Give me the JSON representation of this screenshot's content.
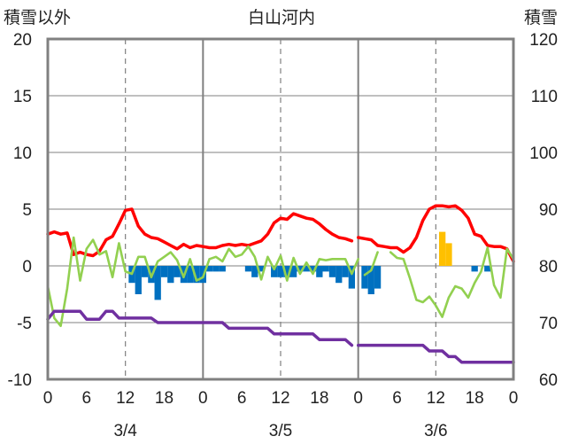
{
  "chart_data": {
    "type": "line",
    "title": "白山河内",
    "ylabel_left": "積雪以外",
    "ylabel_right": "積雪",
    "ylim_left": [
      -10,
      20
    ],
    "ylim_right": [
      60,
      120
    ],
    "left_ticks": [
      "20",
      "15",
      "10",
      "5",
      "0",
      "-5",
      "-10"
    ],
    "right_ticks": [
      "120",
      "110",
      "100",
      "90",
      "80",
      "70",
      "60"
    ],
    "x_tick_labels": [
      "0",
      "6",
      "12",
      "18",
      "0",
      "6",
      "12",
      "18",
      "0",
      "6",
      "12",
      "18",
      "0"
    ],
    "date_labels": [
      "3/4",
      "3/5",
      "3/6"
    ],
    "x_hours_range": [
      0,
      72
    ],
    "grid": true,
    "series": [
      {
        "color": "#ff0000",
        "points": [
          [
            0,
            2.8
          ],
          [
            1,
            3.0
          ],
          [
            2,
            2.8
          ],
          [
            3,
            2.9
          ],
          [
            4,
            1.0
          ],
          [
            5,
            1.2
          ],
          [
            6,
            1.0
          ],
          [
            7,
            0.9
          ],
          [
            8,
            1.3
          ],
          [
            9,
            2.3
          ],
          [
            10,
            2.6
          ],
          [
            11,
            3.7
          ],
          [
            12,
            4.9
          ],
          [
            13,
            5.0
          ],
          [
            14,
            3.5
          ],
          [
            15,
            2.8
          ],
          [
            16,
            2.5
          ],
          [
            17,
            2.4
          ],
          [
            18,
            2.1
          ],
          [
            19,
            1.8
          ],
          [
            20,
            1.5
          ],
          [
            21,
            1.9
          ],
          [
            22,
            1.6
          ],
          [
            23,
            1.8
          ],
          [
            24,
            1.7
          ],
          [
            25,
            1.6
          ],
          [
            26,
            1.6
          ],
          [
            27,
            1.8
          ],
          [
            28,
            1.9
          ],
          [
            29,
            1.8
          ],
          [
            30,
            1.9
          ],
          [
            31,
            1.8
          ],
          [
            32,
            2.0
          ],
          [
            33,
            2.2
          ],
          [
            34,
            2.8
          ],
          [
            35,
            3.8
          ],
          [
            36,
            4.2
          ],
          [
            37,
            4.1
          ],
          [
            38,
            4.6
          ],
          [
            39,
            4.4
          ],
          [
            40,
            4.2
          ],
          [
            41,
            4.1
          ],
          [
            42,
            3.7
          ],
          [
            43,
            3.2
          ],
          [
            44,
            2.8
          ],
          [
            45,
            2.5
          ],
          [
            46,
            2.4
          ],
          [
            47,
            2.2
          ],
          [
            null,
            null
          ],
          [
            48,
            2.5
          ],
          [
            49,
            2.4
          ],
          [
            50,
            2.3
          ],
          [
            51,
            1.8
          ],
          [
            52,
            1.7
          ],
          [
            53,
            1.6
          ],
          [
            54,
            1.6
          ],
          [
            55,
            1.2
          ],
          [
            56,
            1.6
          ],
          [
            57,
            2.5
          ],
          [
            58,
            4.0
          ],
          [
            59,
            5.0
          ],
          [
            60,
            5.3
          ],
          [
            61,
            5.3
          ],
          [
            62,
            5.2
          ],
          [
            63,
            5.3
          ],
          [
            64,
            4.9
          ],
          [
            65,
            4.2
          ],
          [
            66,
            2.8
          ],
          [
            67,
            2.6
          ],
          [
            68,
            1.8
          ],
          [
            69,
            1.7
          ],
          [
            70,
            1.7
          ],
          [
            71,
            1.5
          ],
          [
            72,
            0.4
          ]
        ]
      },
      {
        "color": "#92d050",
        "points": [
          [
            0,
            -1.8
          ],
          [
            1,
            -4.6
          ],
          [
            2,
            -5.3
          ],
          [
            3,
            -2.0
          ],
          [
            4,
            2.5
          ],
          [
            5,
            -1.3
          ],
          [
            6,
            1.5
          ],
          [
            7,
            2.3
          ],
          [
            8,
            1.0
          ],
          [
            9,
            1.3
          ],
          [
            10,
            -1.0
          ],
          [
            11,
            2.0
          ],
          [
            12,
            -0.5
          ],
          [
            13,
            -0.7
          ],
          [
            14,
            0.8
          ],
          [
            15,
            0.8
          ],
          [
            16,
            -1.0
          ],
          [
            17,
            0.4
          ],
          [
            18,
            0.8
          ],
          [
            19,
            1.2
          ],
          [
            20,
            0.5
          ],
          [
            21,
            -1.0
          ],
          [
            22,
            0.6
          ],
          [
            23,
            -1.3
          ],
          [
            24,
            -1.0
          ],
          [
            25,
            0.6
          ],
          [
            26,
            0.8
          ],
          [
            27,
            0.4
          ],
          [
            28,
            1.5
          ],
          [
            29,
            0.8
          ],
          [
            30,
            1.0
          ],
          [
            31,
            1.7
          ],
          [
            32,
            0.8
          ],
          [
            33,
            -1.2
          ],
          [
            34,
            0.8
          ],
          [
            35,
            -0.3
          ],
          [
            36,
            0.9
          ],
          [
            37,
            -1.3
          ],
          [
            38,
            0.7
          ],
          [
            39,
            -0.7
          ],
          [
            40,
            0.3
          ],
          [
            41,
            -0.7
          ],
          [
            42,
            0.6
          ],
          [
            43,
            0.5
          ],
          [
            44,
            0.6
          ],
          [
            45,
            0.6
          ],
          [
            46,
            0.6
          ],
          [
            47,
            -0.7
          ],
          [
            48,
            0.6
          ],
          [
            null,
            null
          ],
          [
            49,
            -0.8
          ],
          [
            50,
            -0.4
          ],
          [
            51,
            1.2
          ],
          [
            null,
            null
          ],
          [
            53,
            1.2
          ],
          [
            54,
            0.7
          ],
          [
            55,
            0.6
          ],
          [
            56,
            -1.1
          ],
          [
            57,
            -3.0
          ],
          [
            58,
            -3.2
          ],
          [
            59,
            -2.7
          ],
          [
            60,
            -3.5
          ],
          [
            61,
            -4.5
          ],
          [
            62,
            -2.8
          ],
          [
            63,
            -1.8
          ],
          [
            64,
            -2.0
          ],
          [
            65,
            -2.8
          ],
          [
            66,
            -1.5
          ],
          [
            67,
            -0.5
          ],
          [
            68,
            1.6
          ],
          [
            69,
            -1.7
          ],
          [
            70,
            -2.8
          ],
          [
            71,
            1.5
          ],
          [
            72,
            0.6
          ]
        ]
      },
      {
        "color": "#7030a0",
        "points": [
          [
            0,
            -4.7
          ],
          [
            1,
            -4.0
          ],
          [
            2,
            -4.0
          ],
          [
            3,
            -4.0
          ],
          [
            4,
            -4.0
          ],
          [
            5,
            -4.0
          ],
          [
            6,
            -4.7
          ],
          [
            7,
            -4.7
          ],
          [
            8,
            -4.7
          ],
          [
            9,
            -4.0
          ],
          [
            10,
            -4.0
          ],
          [
            11,
            -4.6
          ],
          [
            12,
            -4.6
          ],
          [
            13,
            -4.6
          ],
          [
            14,
            -4.6
          ],
          [
            15,
            -4.6
          ],
          [
            16,
            -4.6
          ],
          [
            17,
            -5.0
          ],
          [
            18,
            -5.0
          ],
          [
            19,
            -5.0
          ],
          [
            20,
            -5.0
          ],
          [
            21,
            -5.0
          ],
          [
            22,
            -5.0
          ],
          [
            23,
            -5.0
          ],
          [
            24,
            -5.0
          ],
          [
            25,
            -5.0
          ],
          [
            26,
            -5.0
          ],
          [
            27,
            -5.0
          ],
          [
            28,
            -5.5
          ],
          [
            29,
            -5.5
          ],
          [
            30,
            -5.5
          ],
          [
            31,
            -5.5
          ],
          [
            32,
            -5.5
          ],
          [
            33,
            -5.5
          ],
          [
            34,
            -5.5
          ],
          [
            35,
            -6.0
          ],
          [
            36,
            -6.0
          ],
          [
            37,
            -6.0
          ],
          [
            38,
            -6.0
          ],
          [
            39,
            -6.0
          ],
          [
            40,
            -6.0
          ],
          [
            41,
            -6.0
          ],
          [
            42,
            -6.5
          ],
          [
            43,
            -6.5
          ],
          [
            44,
            -6.5
          ],
          [
            45,
            -6.5
          ],
          [
            46,
            -6.5
          ],
          [
            47,
            -7.0
          ],
          [
            null,
            null
          ],
          [
            48,
            -7.0
          ],
          [
            49,
            -7.0
          ],
          [
            50,
            -7.0
          ],
          [
            51,
            -7.0
          ],
          [
            52,
            -7.0
          ],
          [
            53,
            -7.0
          ],
          [
            54,
            -7.0
          ],
          [
            55,
            -7.0
          ],
          [
            56,
            -7.0
          ],
          [
            57,
            -7.0
          ],
          [
            58,
            -7.0
          ],
          [
            59,
            -7.5
          ],
          [
            60,
            -7.5
          ],
          [
            61,
            -7.5
          ],
          [
            62,
            -8.0
          ],
          [
            63,
            -8.0
          ],
          [
            64,
            -8.5
          ],
          [
            65,
            -8.5
          ],
          [
            66,
            -8.5
          ],
          [
            67,
            -8.5
          ],
          [
            68,
            -8.5
          ],
          [
            69,
            -8.5
          ],
          [
            70,
            -8.5
          ],
          [
            71,
            -8.5
          ],
          [
            72,
            -8.5
          ]
        ]
      }
    ],
    "bars_blue": {
      "color": "#0070c0",
      "bars": [
        [
          13,
          -1.5
        ],
        [
          14,
          -2.5
        ],
        [
          15,
          -1.0
        ],
        [
          16,
          -1.5
        ],
        [
          17,
          -3.0
        ],
        [
          18,
          -1.0
        ],
        [
          19,
          -1.5
        ],
        [
          20,
          -1.0
        ],
        [
          21,
          -1.5
        ],
        [
          22,
          -1.5
        ],
        [
          23,
          -1.5
        ],
        [
          24,
          -1.5
        ],
        [
          25,
          -0.5
        ],
        [
          26,
          -0.5
        ],
        [
          27,
          -0.5
        ],
        [
          31,
          -0.5
        ],
        [
          32,
          -1.0
        ],
        [
          33,
          -0.5
        ],
        [
          35,
          -1.0
        ],
        [
          36,
          -1.0
        ],
        [
          37,
          -1.0
        ],
        [
          38,
          -1.0
        ],
        [
          39,
          -0.5
        ],
        [
          40,
          -0.5
        ],
        [
          41,
          -0.5
        ],
        [
          42,
          -1.0
        ],
        [
          43,
          -0.5
        ],
        [
          44,
          -1.0
        ],
        [
          45,
          -1.5
        ],
        [
          46,
          -1.0
        ],
        [
          47,
          -2.0
        ],
        [
          49,
          -2.0
        ],
        [
          50,
          -2.5
        ],
        [
          51,
          -2.0
        ],
        [
          66,
          -0.5
        ],
        [
          68,
          -0.5
        ]
      ]
    },
    "bars_yellow": {
      "color": "#ffc000",
      "bars": [
        [
          61,
          3.0
        ],
        [
          62,
          2.0
        ]
      ]
    }
  }
}
